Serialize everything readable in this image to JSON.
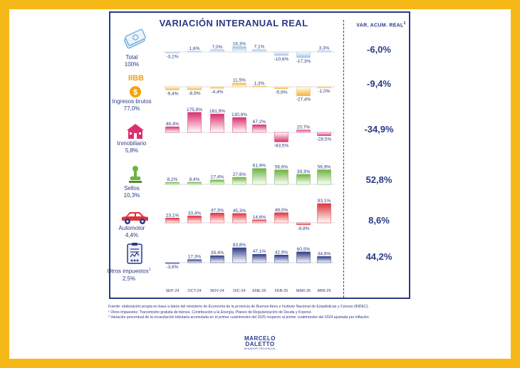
{
  "title": "VARIACIÓN INTERANUAL REAL",
  "acc_title": "VAR. ACUM. REAL",
  "acc_title_note": "2",
  "rows": [
    {
      "name": "Total",
      "share": "100%",
      "acc": "-6,0%",
      "icon": "money-icon"
    },
    {
      "name": "Ingresos brutos",
      "title_tag": "IIBB",
      "share": "77,0%",
      "acc": "-9,4%",
      "icon": "coin-icon"
    },
    {
      "name": "Inmobiliario",
      "share": "5,8%",
      "acc": "-34,9%",
      "icon": "house-icon"
    },
    {
      "name": "Sellos",
      "share": "10,3%",
      "acc": "52,8%",
      "icon": "stamp-icon"
    },
    {
      "name": "Automotor",
      "share": "4,4%",
      "acc": "8,6%",
      "icon": "car-icon"
    },
    {
      "name": "Otros impuestos",
      "note": "1",
      "share": "2,5%",
      "acc": "44,2%",
      "icon": "document-icon"
    }
  ],
  "chart_data": {
    "type": "bar",
    "categories": [
      "SEP-24",
      "OCT-24",
      "NOV-24",
      "DIC-24",
      "ENE-25",
      "FEB-25",
      "MAR-25",
      "ABR-25"
    ],
    "series": [
      {
        "name": "Total",
        "values": [
          -3.2,
          1.6,
          7.0,
          16.3,
          7.1,
          -10.6,
          -17.3,
          3.3
        ],
        "labels": [
          "-3,2%",
          "1,6%",
          "7,0%",
          "16,3%",
          "7,1%",
          "-10,6%",
          "-17,3%",
          "3,3%"
        ],
        "color": "#9cc3e6"
      },
      {
        "name": "Ingresos brutos",
        "values": [
          -9.4,
          -8.9,
          -4.4,
          11.5,
          1.3,
          -5.6,
          -27.4,
          -1.0
        ],
        "labels": [
          "-9,4%",
          "-8,9%",
          "-4,4%",
          "11,5%",
          "1,3%",
          "-5,6%",
          "-27,4%",
          "-1,0%"
        ],
        "color": "#f2b53a"
      },
      {
        "name": "Inmobiliario",
        "values": [
          49.4,
          175.9,
          161.9,
          130.9,
          67.2,
          -83.5,
          20.7,
          -28.5
        ],
        "labels": [
          "49,4%",
          "175,9%",
          "161,9%",
          "130,9%",
          "67,2%",
          "-83,5%",
          "20,7%",
          "-28,5%"
        ],
        "color": "#d9306e"
      },
      {
        "name": "Sellos",
        "values": [
          8.2,
          8.4,
          17.4,
          27.6,
          61.9,
          56.6,
          39.3,
          56.9
        ],
        "labels": [
          "8,2%",
          "8,4%",
          "17,4%",
          "27,6%",
          "61,9%",
          "56,6%",
          "39,3%",
          "56,9%"
        ],
        "color": "#6cb33f"
      },
      {
        "name": "Automotor",
        "values": [
          23.1,
          33.4,
          47.3,
          45.3,
          14.6,
          49.0,
          -9.8,
          93.1
        ],
        "labels": [
          "23,1%",
          "33,4%",
          "47,3%",
          "45,3%",
          "14,6%",
          "49,0%",
          "-9,8%",
          "93,1%"
        ],
        "color": "#e0333a"
      },
      {
        "name": "Otros impuestos",
        "values": [
          -3.6,
          17.3,
          39.4,
          83.8,
          47.1,
          42.9,
          60.5,
          34.6
        ],
        "labels": [
          "-3,6%",
          "17,3%",
          "39,4%",
          "83,8%",
          "47,1%",
          "42,9%",
          "60,5%",
          "34,6%"
        ],
        "color": "#2b3a86"
      }
    ]
  },
  "footer": [
    "Fuente: elaboración propia en base a datos del ministerio de Economía de la provincia de Buenos Aires e Instituto Nacional de Estadísticas y Censos (INDEC).",
    "¹ Otros impuestos: Transmisión gratuita de bienes, Contribución a la Energía, Planes de Regularización de Deuda y Foprovi.",
    "² Variación porcentual de la recaudación tributaria acumulada en el primer cuatrimestre del 2025 respecto al primer cuatrimestre del 2024 ajustada por inflación"
  ],
  "logo": {
    "line1": "MARCELO",
    "line2": "DALETTO",
    "line3": "SENADOR PROVINCIAL"
  }
}
